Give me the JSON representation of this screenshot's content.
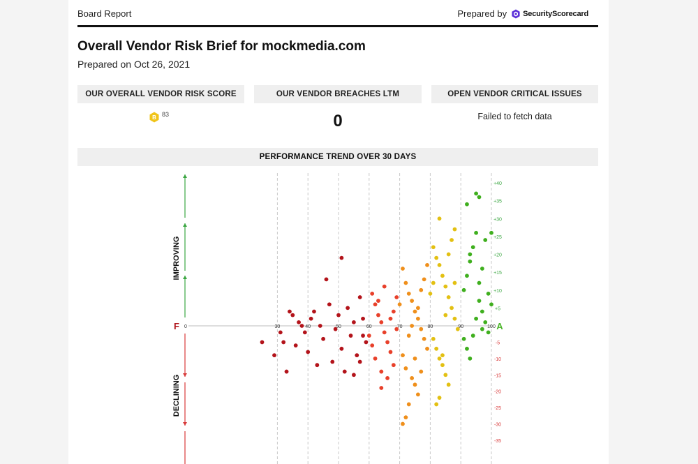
{
  "header": {
    "left_label": "Board Report",
    "prepared_by": "Prepared by",
    "brand": "SecurityScorecard"
  },
  "report": {
    "title": "Overall Vendor Risk Brief for mockmedia.com",
    "prepared_on": "Prepared on Oct 26, 2021"
  },
  "cards": [
    {
      "heading": "OUR OVERALL VENDOR RISK SCORE",
      "grade": "B",
      "score": "83"
    },
    {
      "heading": "OUR VENDOR BREACHES LTM",
      "value": "0"
    },
    {
      "heading": "OPEN VENDOR CRITICAL ISSUES",
      "value": "Failed to fetch data"
    }
  ],
  "colors": {
    "grade_badge": "#f0c419",
    "improving": "#3aa641",
    "declining": "#d83a3a",
    "grade_f": "#b0141b",
    "grade_a": "#4bb52a"
  },
  "chart_data": {
    "type": "scatter",
    "title": "PERFORMANCE TREND OVER 30 DAYS",
    "x_label_left": "F",
    "x_label_right": "A",
    "up_label": "IMPROVING",
    "down_label": "DECLINING",
    "x_ticks": [
      "0",
      "30",
      "40",
      "50",
      "60",
      "70",
      "80",
      "90",
      "100"
    ],
    "xlim": [
      0,
      100
    ],
    "y_ticks_pos": [
      "+40",
      "+35",
      "+30",
      "+25",
      "+20",
      "+15",
      "+10",
      "+5"
    ],
    "y_ticks_neg": [
      "-5",
      "-10",
      "-15",
      "-20",
      "-25",
      "-30",
      "-35"
    ],
    "ylim": [
      -38,
      40
    ],
    "color_bands": [
      {
        "from": 0,
        "to": 60,
        "color": "#b3131a"
      },
      {
        "from": 60,
        "to": 70,
        "color": "#e8402a"
      },
      {
        "from": 70,
        "to": 80,
        "color": "#ef8f1b"
      },
      {
        "from": 80,
        "to": 90,
        "color": "#e3c012"
      },
      {
        "from": 90,
        "to": 100,
        "color": "#3faf1e"
      }
    ],
    "points": [
      [
        34,
        4
      ],
      [
        35,
        3
      ],
      [
        37,
        1
      ],
      [
        38,
        0
      ],
      [
        39,
        -2
      ],
      [
        36,
        -6
      ],
      [
        41,
        2
      ],
      [
        42,
        4
      ],
      [
        44,
        0
      ],
      [
        45,
        -4
      ],
      [
        40,
        -8
      ],
      [
        43,
        -12
      ],
      [
        47,
        6
      ],
      [
        49,
        -1
      ],
      [
        50,
        3
      ],
      [
        51,
        -7
      ],
      [
        48,
        -11
      ],
      [
        53,
        5
      ],
      [
        55,
        1
      ],
      [
        54,
        -3
      ],
      [
        52,
        -14
      ],
      [
        57,
        8
      ],
      [
        58,
        2
      ],
      [
        56,
        -9
      ],
      [
        59,
        -5
      ],
      [
        32,
        -5
      ],
      [
        31,
        -2
      ],
      [
        33,
        -14
      ],
      [
        25,
        -5
      ],
      [
        29,
        -9
      ],
      [
        46,
        13
      ],
      [
        51,
        19
      ],
      [
        55,
        -15
      ],
      [
        57,
        -11
      ],
      [
        58,
        -3
      ],
      [
        61,
        9
      ],
      [
        62,
        6
      ],
      [
        63,
        3
      ],
      [
        64,
        1
      ],
      [
        65,
        -2
      ],
      [
        66,
        -5
      ],
      [
        67,
        -8
      ],
      [
        68,
        4
      ],
      [
        69,
        -1
      ],
      [
        62,
        -10
      ],
      [
        64,
        -14
      ],
      [
        66,
        -16
      ],
      [
        61,
        -6
      ],
      [
        63,
        7
      ],
      [
        65,
        11
      ],
      [
        67,
        2
      ],
      [
        68,
        -12
      ],
      [
        69,
        8
      ],
      [
        60,
        -3
      ],
      [
        64,
        -19
      ],
      [
        71,
        16
      ],
      [
        72,
        12
      ],
      [
        73,
        9
      ],
      [
        74,
        7
      ],
      [
        75,
        4
      ],
      [
        76,
        2
      ],
      [
        77,
        -1
      ],
      [
        78,
        -4
      ],
      [
        79,
        -7
      ],
      [
        71,
        -9
      ],
      [
        72,
        -13
      ],
      [
        74,
        -16
      ],
      [
        75,
        -18
      ],
      [
        76,
        -21
      ],
      [
        73,
        -24
      ],
      [
        72,
        -28
      ],
      [
        71,
        -30
      ],
      [
        70,
        6
      ],
      [
        77,
        10
      ],
      [
        78,
        13
      ],
      [
        79,
        17
      ],
      [
        73,
        -3
      ],
      [
        75,
        -10
      ],
      [
        77,
        -14
      ],
      [
        74,
        0
      ],
      [
        76,
        5
      ],
      [
        81,
        22
      ],
      [
        82,
        19
      ],
      [
        83,
        17
      ],
      [
        84,
        14
      ],
      [
        85,
        11
      ],
      [
        86,
        8
      ],
      [
        87,
        5
      ],
      [
        88,
        2
      ],
      [
        89,
        -1
      ],
      [
        81,
        -4
      ],
      [
        82,
        -7
      ],
      [
        83,
        -10
      ],
      [
        84,
        -12
      ],
      [
        85,
        -15
      ],
      [
        86,
        -18
      ],
      [
        83,
        -22
      ],
      [
        82,
        -24
      ],
      [
        84,
        -9
      ],
      [
        86,
        20
      ],
      [
        87,
        24
      ],
      [
        88,
        27
      ],
      [
        83,
        30
      ],
      [
        80,
        9
      ],
      [
        81,
        12
      ],
      [
        85,
        3
      ],
      [
        88,
        12
      ],
      [
        91,
        10
      ],
      [
        92,
        14
      ],
      [
        93,
        18
      ],
      [
        94,
        22
      ],
      [
        95,
        26
      ],
      [
        96,
        7
      ],
      [
        97,
        4
      ],
      [
        98,
        1
      ],
      [
        99,
        -2
      ],
      [
        100,
        6
      ],
      [
        91,
        -4
      ],
      [
        92,
        -7
      ],
      [
        93,
        -10
      ],
      [
        94,
        -3
      ],
      [
        95,
        2
      ],
      [
        96,
        12
      ],
      [
        97,
        16
      ],
      [
        98,
        24
      ],
      [
        100,
        26
      ],
      [
        92,
        34
      ],
      [
        95,
        37
      ],
      [
        96,
        36
      ],
      [
        97,
        -1
      ],
      [
        99,
        9
      ],
      [
        93,
        20
      ]
    ]
  }
}
